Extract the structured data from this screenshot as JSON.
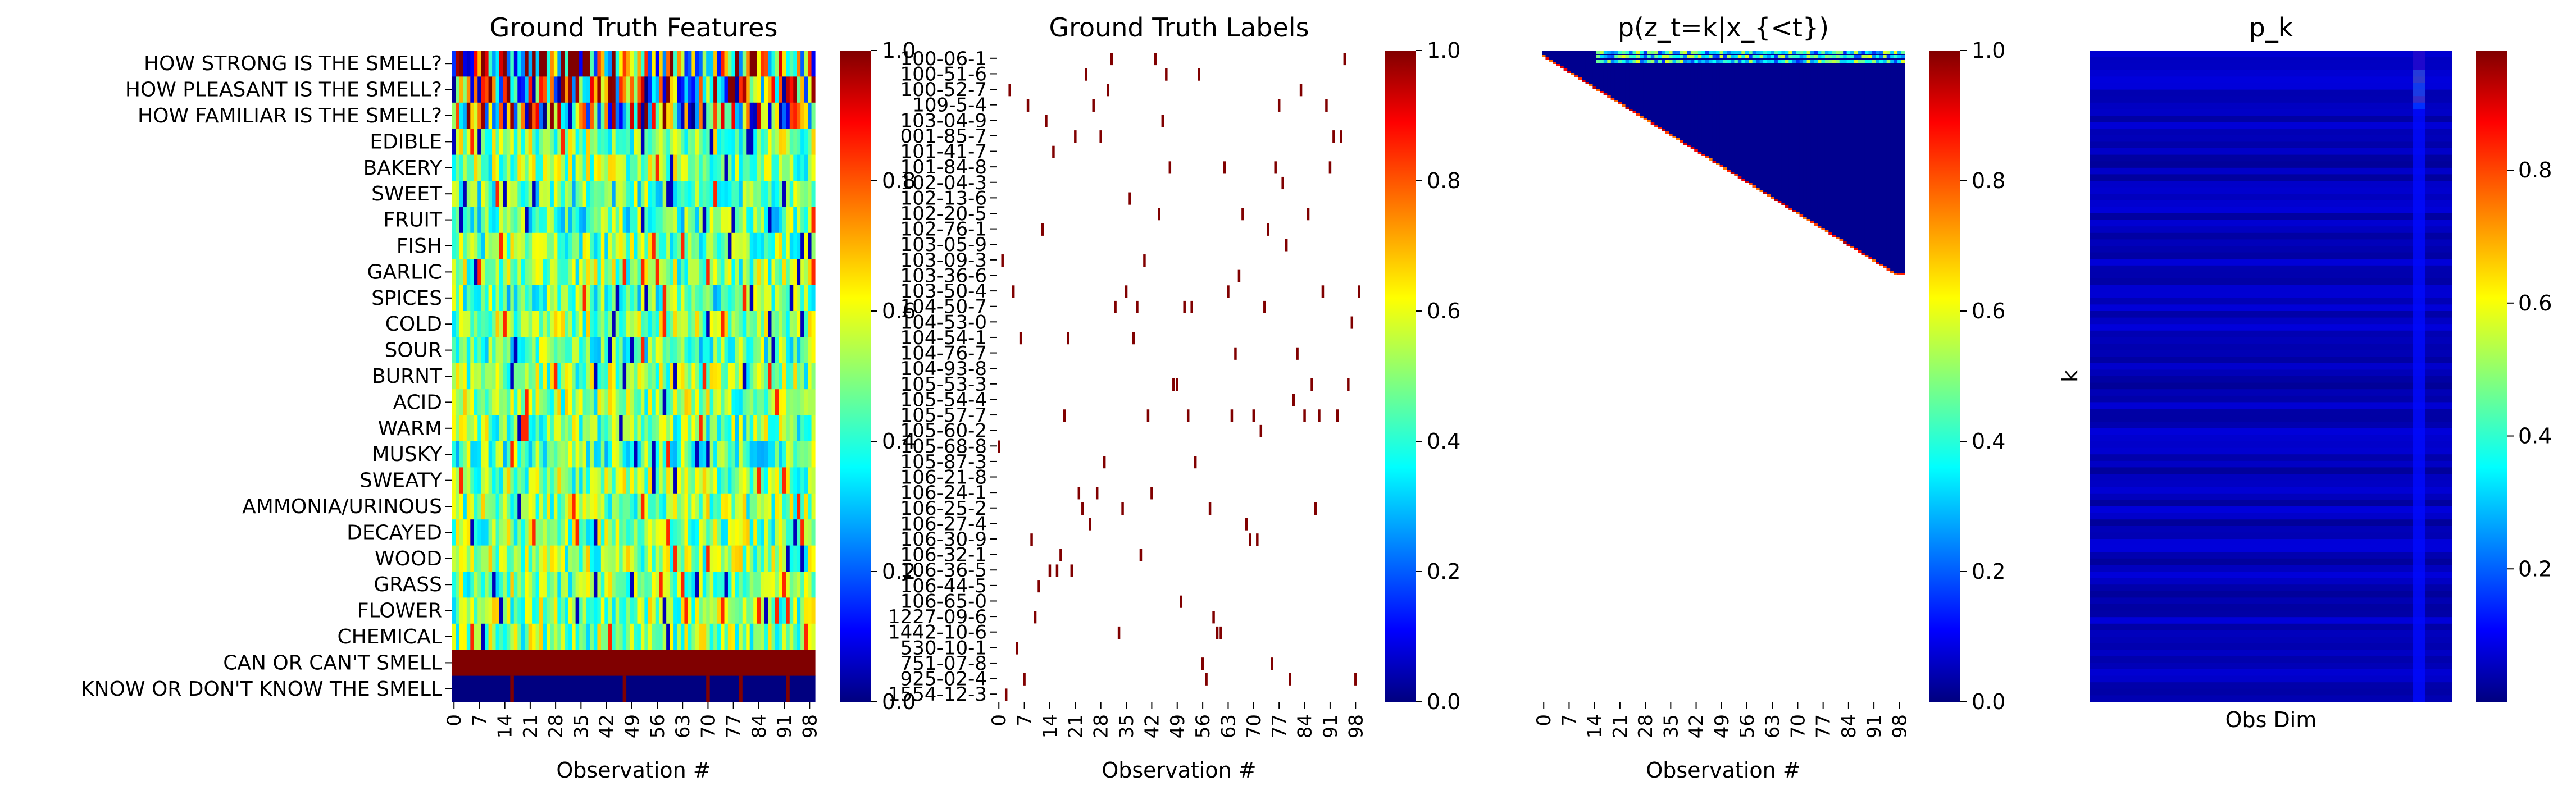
{
  "colormap": "jet",
  "colormap_stops": [
    "#000080",
    "#0000ff",
    "#00ffff",
    "#ffff00",
    "#ff0000",
    "#800000"
  ],
  "chart_data": [
    {
      "type": "heatmap",
      "title": "Ground Truth Features",
      "xlabel": "Observation #",
      "ylabel": "",
      "x_ticks": [
        "0",
        "7",
        "14",
        "21",
        "28",
        "35",
        "42",
        "49",
        "56",
        "63",
        "70",
        "77",
        "84",
        "91",
        "98"
      ],
      "n_observations": 100,
      "rows": [
        "HOW STRONG IS THE SMELL?",
        "HOW PLEASANT IS THE SMELL?",
        "HOW FAMILIAR IS THE SMELL?",
        "EDIBLE",
        "BAKERY",
        "SWEET",
        "FRUIT",
        "FISH",
        "GARLIC",
        "SPICES",
        "COLD",
        "SOUR",
        "BURNT",
        "ACID",
        "WARM",
        "MUSKY",
        "SWEATY",
        "AMMONIA/URINOUS",
        "DECAYED",
        "WOOD",
        "GRASS",
        "FLOWER",
        "CHEMICAL",
        "CAN OR CAN'T SMELL",
        "KNOW OR DON'T KNOW THE SMELL"
      ],
      "row_mean_values": [
        0.6,
        0.55,
        0.55,
        0.5,
        0.5,
        0.45,
        0.45,
        0.48,
        0.5,
        0.45,
        0.5,
        0.45,
        0.5,
        0.5,
        0.48,
        0.45,
        0.5,
        0.5,
        0.5,
        0.5,
        0.5,
        0.5,
        0.5,
        1.0,
        0.0
      ],
      "colorbar": {
        "min": 0.0,
        "max": 1.0,
        "ticks": [
          "0.0",
          "0.2",
          "0.4",
          "0.6",
          "0.8",
          "1.0"
        ]
      }
    },
    {
      "type": "heatmap",
      "title": "Ground Truth Labels",
      "xlabel": "Observation #",
      "ylabel": "",
      "x_ticks": [
        "0",
        "7",
        "14",
        "21",
        "28",
        "35",
        "42",
        "49",
        "56",
        "63",
        "70",
        "77",
        "84",
        "91",
        "98"
      ],
      "n_observations": 100,
      "rows": [
        "100-06-1",
        "100-51-6",
        "100-52-7",
        "109-5-4",
        "103-04-9",
        "001-85-7",
        "101-41-7",
        "101-84-8",
        "102-04-3",
        "102-13-6",
        "102-20-5",
        "102-76-1",
        "103-05-9",
        "103-09-3",
        "103-36-6",
        "103-50-4",
        "104-50-7",
        "104-53-0",
        "104-54-1",
        "104-76-7",
        "104-93-8",
        "105-53-3",
        "105-54-4",
        "105-57-7",
        "105-60-2",
        "105-68-8",
        "105-87-3",
        "106-21-8",
        "106-24-1",
        "106-25-2",
        "106-27-4",
        "106-30-9",
        "106-32-1",
        "106-36-5",
        "106-44-5",
        "106-65-0",
        "1227-09-6",
        "1442-10-6",
        "530-10-1",
        "751-07-8",
        "925-02-4",
        "1554-12-3"
      ],
      "label_value": 1.0,
      "colorbar": {
        "min": 0.0,
        "max": 1.0,
        "ticks": [
          "0.0",
          "0.2",
          "0.4",
          "0.6",
          "0.8",
          "1.0"
        ]
      }
    },
    {
      "type": "heatmap",
      "title": "p(z_t=k|x_{<t})",
      "xlabel": "Observation #",
      "ylabel": "",
      "x_ticks": [
        "0",
        "7",
        "14",
        "21",
        "28",
        "35",
        "42",
        "49",
        "56",
        "63",
        "70",
        "77",
        "84",
        "91",
        "98"
      ],
      "n_observations": 100,
      "structure": "lower-triangular staircase of probabilities; most values near 0, a few cluster rows near 0.3-0.6",
      "colorbar": {
        "min": 0.0,
        "max": 1.0,
        "ticks": [
          "0.0",
          "0.2",
          "0.4",
          "0.6",
          "0.8",
          "1.0"
        ]
      }
    },
    {
      "type": "heatmap",
      "title": "p_k",
      "xlabel": "Obs Dim",
      "ylabel": "k",
      "structure": "mostly near 0; column near the right edge has high values in the top rows",
      "colorbar": {
        "min": 0.0,
        "max": 0.98,
        "ticks": [
          "0.2",
          "0.4",
          "0.6",
          "0.8"
        ]
      }
    }
  ]
}
